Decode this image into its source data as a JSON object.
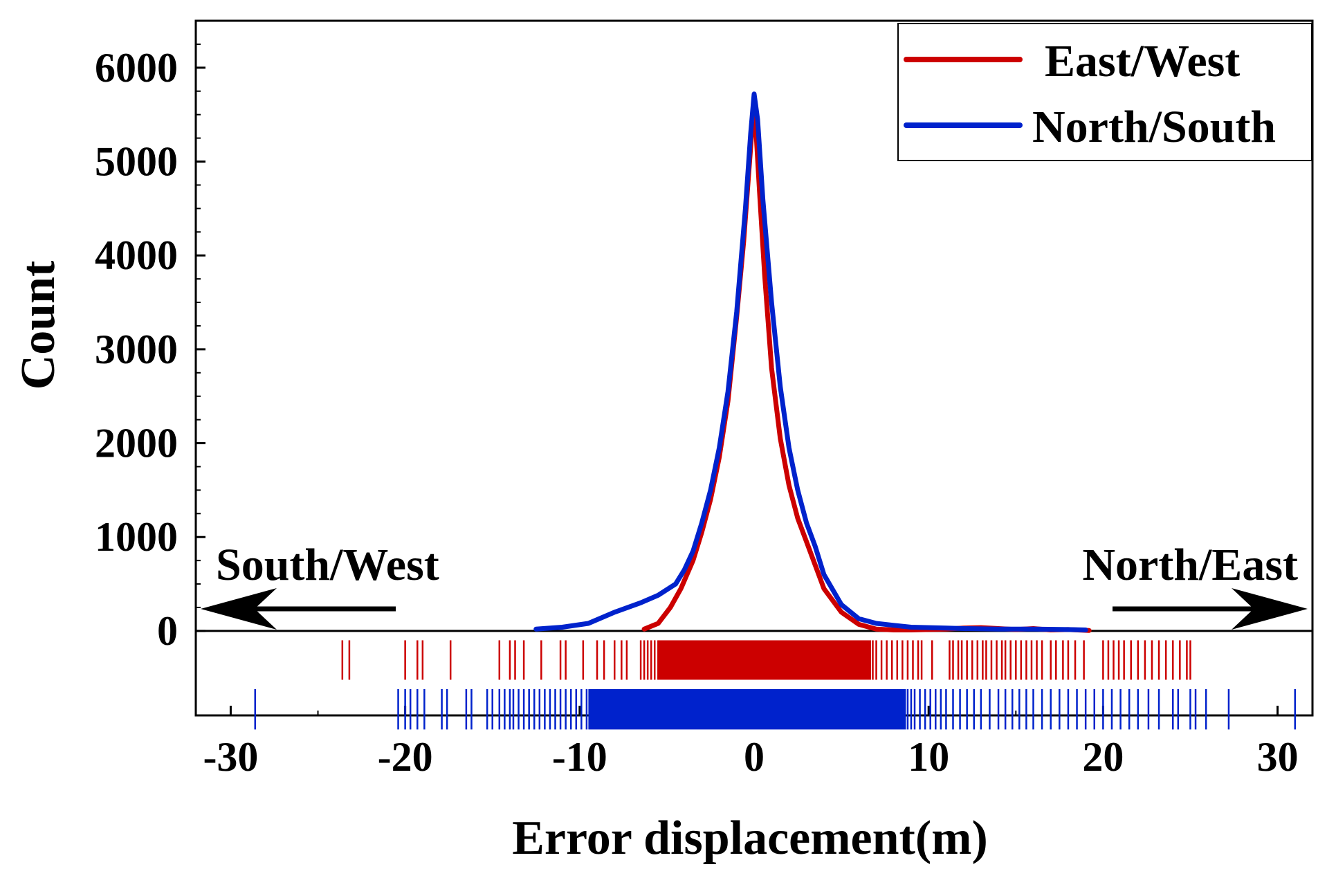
{
  "chart_data": {
    "type": "line",
    "title": "",
    "xlabel": "Error displacement(m)",
    "ylabel": "Count",
    "xlim": [
      -32,
      32
    ],
    "ylim": [
      -900,
      6500
    ],
    "x_ticks": [
      -30,
      -20,
      -10,
      0,
      10,
      20,
      30
    ],
    "x_tick_labels": [
      "-30",
      "-20",
      "-10",
      "0",
      "10",
      "20",
      "30"
    ],
    "y_ticks": [
      0,
      1000,
      2000,
      3000,
      4000,
      5000,
      6000
    ],
    "y_tick_labels": [
      "0",
      "1000",
      "2000",
      "3000",
      "4000",
      "5000",
      "6000"
    ],
    "grid": false,
    "legend_position": "top-right",
    "series": [
      {
        "name": "East/West",
        "color": "#cc0000",
        "x": [
          -6.3,
          -5.5,
          -4.8,
          -4.2,
          -3.5,
          -3.0,
          -2.5,
          -2.0,
          -1.5,
          -1.0,
          -0.6,
          -0.3,
          -0.1,
          0.0,
          0.1,
          0.3,
          0.6,
          1.0,
          1.5,
          2.0,
          2.5,
          3.0,
          3.5,
          4.0,
          5.0,
          6.0,
          7.0,
          8.0,
          9.0,
          10.0,
          11.0,
          12.0,
          13.0,
          14.0,
          15.0,
          16.0,
          17.0,
          18.0,
          19.2
        ],
        "y": [
          20,
          80,
          250,
          450,
          750,
          1050,
          1400,
          1850,
          2450,
          3350,
          4150,
          4900,
          5400,
          5600,
          5350,
          4700,
          3800,
          2800,
          2050,
          1550,
          1200,
          950,
          700,
          450,
          200,
          70,
          20,
          10,
          10,
          15,
          20,
          30,
          35,
          25,
          15,
          25,
          10,
          15,
          5
        ]
      },
      {
        "name": "North/South",
        "color": "#0022cc",
        "x": [
          -12.5,
          -11.0,
          -9.5,
          -8.0,
          -6.5,
          -5.5,
          -4.5,
          -4.0,
          -3.5,
          -3.0,
          -2.5,
          -2.0,
          -1.5,
          -1.0,
          -0.5,
          -0.2,
          0.0,
          0.2,
          0.5,
          1.0,
          1.5,
          2.0,
          2.5,
          3.0,
          3.5,
          4.0,
          5.0,
          6.0,
          7.0,
          8.0,
          9.0,
          10.0,
          11.0,
          12.0,
          14.0,
          16.0,
          18.0,
          19.0
        ],
        "y": [
          20,
          40,
          80,
          200,
          300,
          380,
          500,
          650,
          850,
          1150,
          1500,
          1950,
          2550,
          3400,
          4500,
          5300,
          5720,
          5450,
          4600,
          3500,
          2600,
          1950,
          1500,
          1150,
          900,
          600,
          280,
          130,
          80,
          60,
          40,
          35,
          30,
          25,
          20,
          20,
          15,
          10
        ]
      }
    ],
    "rug": [
      {
        "name": "East/West",
        "color": "#cc0000",
        "values": [
          -23.6,
          -23.2,
          -20.0,
          -19.3,
          -19.0,
          -17.4,
          -14.6,
          -14.0,
          -13.7,
          -13.2,
          -12.2,
          -11.1,
          -10.8,
          -9.8,
          -9.0,
          -8.6,
          -8.0,
          -7.6,
          -7.3,
          -6.5,
          -6.3,
          -6.1,
          -5.9,
          -5.7,
          -5.5,
          6.8,
          7.0,
          7.3,
          7.6,
          7.9,
          8.2,
          8.5,
          8.8,
          9.1,
          9.4,
          9.6,
          10.2,
          11.2,
          11.4,
          11.7,
          11.9,
          12.2,
          12.5,
          12.8,
          13.1,
          13.3,
          13.6,
          13.9,
          14.2,
          14.4,
          14.7,
          15.0,
          15.3,
          15.6,
          15.9,
          16.2,
          16.5,
          17.0,
          17.3,
          17.7,
          18.0,
          18.4,
          18.9,
          20.0,
          20.3,
          20.6,
          20.9,
          21.2,
          21.6,
          22.0,
          22.4,
          22.8,
          23.2,
          23.6,
          24.0,
          24.4,
          24.8,
          25.0
        ],
        "band": [
          -5.5,
          6.7
        ]
      },
      {
        "name": "North/South",
        "color": "#0022cc",
        "values": [
          -28.6,
          -20.4,
          -20.0,
          -19.7,
          -19.3,
          -18.9,
          -17.9,
          -17.6,
          -16.5,
          -16.2,
          -15.3,
          -15.0,
          -14.6,
          -14.3,
          -14.0,
          -13.8,
          -13.5,
          -13.2,
          -12.9,
          -12.6,
          -12.3,
          -12.0,
          -11.7,
          -11.4,
          -11.1,
          -10.8,
          -10.5,
          -10.2,
          -9.9,
          -9.6,
          8.8,
          9.0,
          9.2,
          9.5,
          9.8,
          10.1,
          10.4,
          10.7,
          11.0,
          11.4,
          11.8,
          12.2,
          12.6,
          13.0,
          13.5,
          14.0,
          14.4,
          14.8,
          15.2,
          15.6,
          16.0,
          16.5,
          17.0,
          17.5,
          18.0,
          18.5,
          19.0,
          19.5,
          20.0,
          20.5,
          21.0,
          21.5,
          22.0,
          22.6,
          23.2,
          24.0,
          24.3,
          25.0,
          25.3,
          25.9,
          27.2,
          31.0
        ],
        "band": [
          -9.5,
          8.7
        ]
      }
    ],
    "annotations": {
      "left": "South/West",
      "right": "North/East"
    }
  }
}
